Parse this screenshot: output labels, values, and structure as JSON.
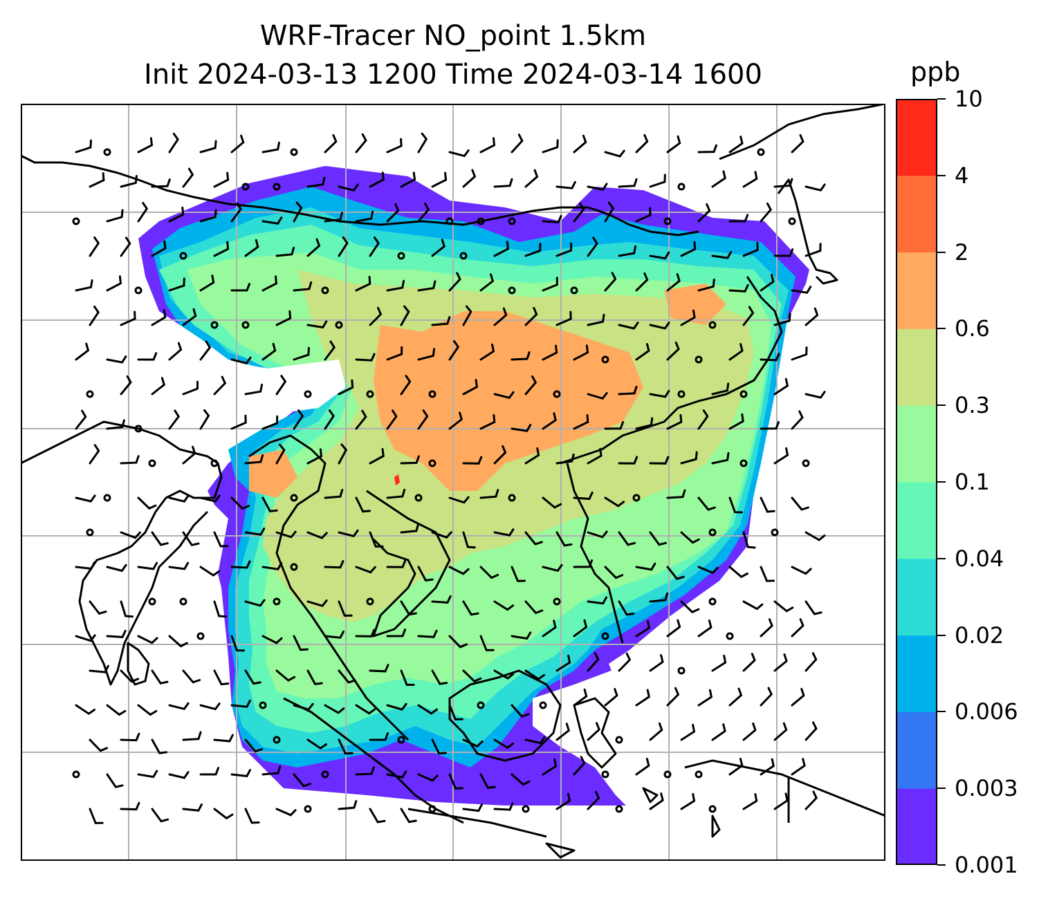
{
  "title": {
    "line1": "WRF-Tracer NO_point 1.5km",
    "line2": "Init 2024-03-13 1200 Time 2024-03-14 1600"
  },
  "colorbar": {
    "units": "ppb",
    "ticks": [
      "0.001",
      "0.003",
      "0.006",
      "0.02",
      "0.04",
      "0.1",
      "0.3",
      "0.6",
      "2",
      "4",
      "10"
    ],
    "colors": [
      "#6a2cff",
      "#3477f3",
      "#00b2ec",
      "#2edcd6",
      "#66f7b8",
      "#98fa9c",
      "#c9e283",
      "#ffaa5e",
      "#ff6e38",
      "#ff2a1a"
    ]
  },
  "map": {
    "gridlines": true,
    "gridline_color": "#b0b0b0",
    "coastline_color": "#000000",
    "field": "NO_point concentration",
    "overlay": "wind barbs"
  }
}
